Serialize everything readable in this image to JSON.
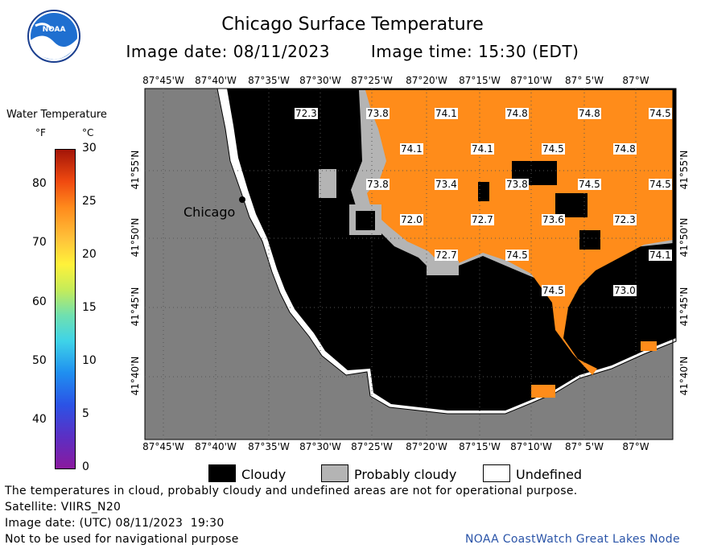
{
  "header": {
    "title": "Chicago Surface Temperature",
    "image_date": "Image date: 08/11/2023",
    "image_time": "Image time: 15:30 (EDT)",
    "logo_text": "NOAA"
  },
  "map": {
    "place_label": "Chicago",
    "lon_ticks": [
      "87°45'W",
      "87°40'W",
      "87°35'W",
      "87°30'W",
      "87°25'W",
      "87°20'W",
      "87°15'W",
      "87°10'W",
      "87° 5'W",
      "87°W"
    ],
    "lat_ticks": [
      "41°55'N",
      "41°50'N",
      "41°45'N",
      "41°40'N"
    ],
    "temperature_labels": [
      "72.3",
      "73.8",
      "74.1",
      "74.8",
      "74.8",
      "74.5",
      "74.1",
      "74.1",
      "74.5",
      "74.8",
      "73.8",
      "73.4",
      "73.8",
      "74.5",
      "74.5",
      "72.0",
      "72.7",
      "73.6",
      "72.3",
      "72.7",
      "74.5",
      "74.1",
      "74.5",
      "73.0"
    ],
    "colors": {
      "land": "#7f7f7f",
      "cloudy": "#000000",
      "probably_cloudy": "#b4b4b4",
      "undefined": "#ffffff",
      "water_warm": "#ff8c1a"
    }
  },
  "legend": {
    "title": "Water Temperature",
    "unit_f": "°F",
    "unit_c": "°C",
    "f_ticks": [
      "80",
      "70",
      "60",
      "50",
      "40"
    ],
    "c_ticks": [
      "30",
      "25",
      "20",
      "15",
      "10",
      "5",
      "0"
    ]
  },
  "key": {
    "cloudy": "Cloudy",
    "probably_cloudy": "Probably cloudy",
    "undefined": "Undefined"
  },
  "footer": {
    "disclaimer": "The temperatures in cloud, probably cloudy and undefined areas are not for operational purpose.",
    "satellite": "Satellite: VIIRS_N20",
    "utc_date": "Image date: (UTC) 08/11/2023  19:30",
    "nav_warning": "Not to be used for navigational purpose",
    "credit": "NOAA CoastWatch Great Lakes Node"
  }
}
